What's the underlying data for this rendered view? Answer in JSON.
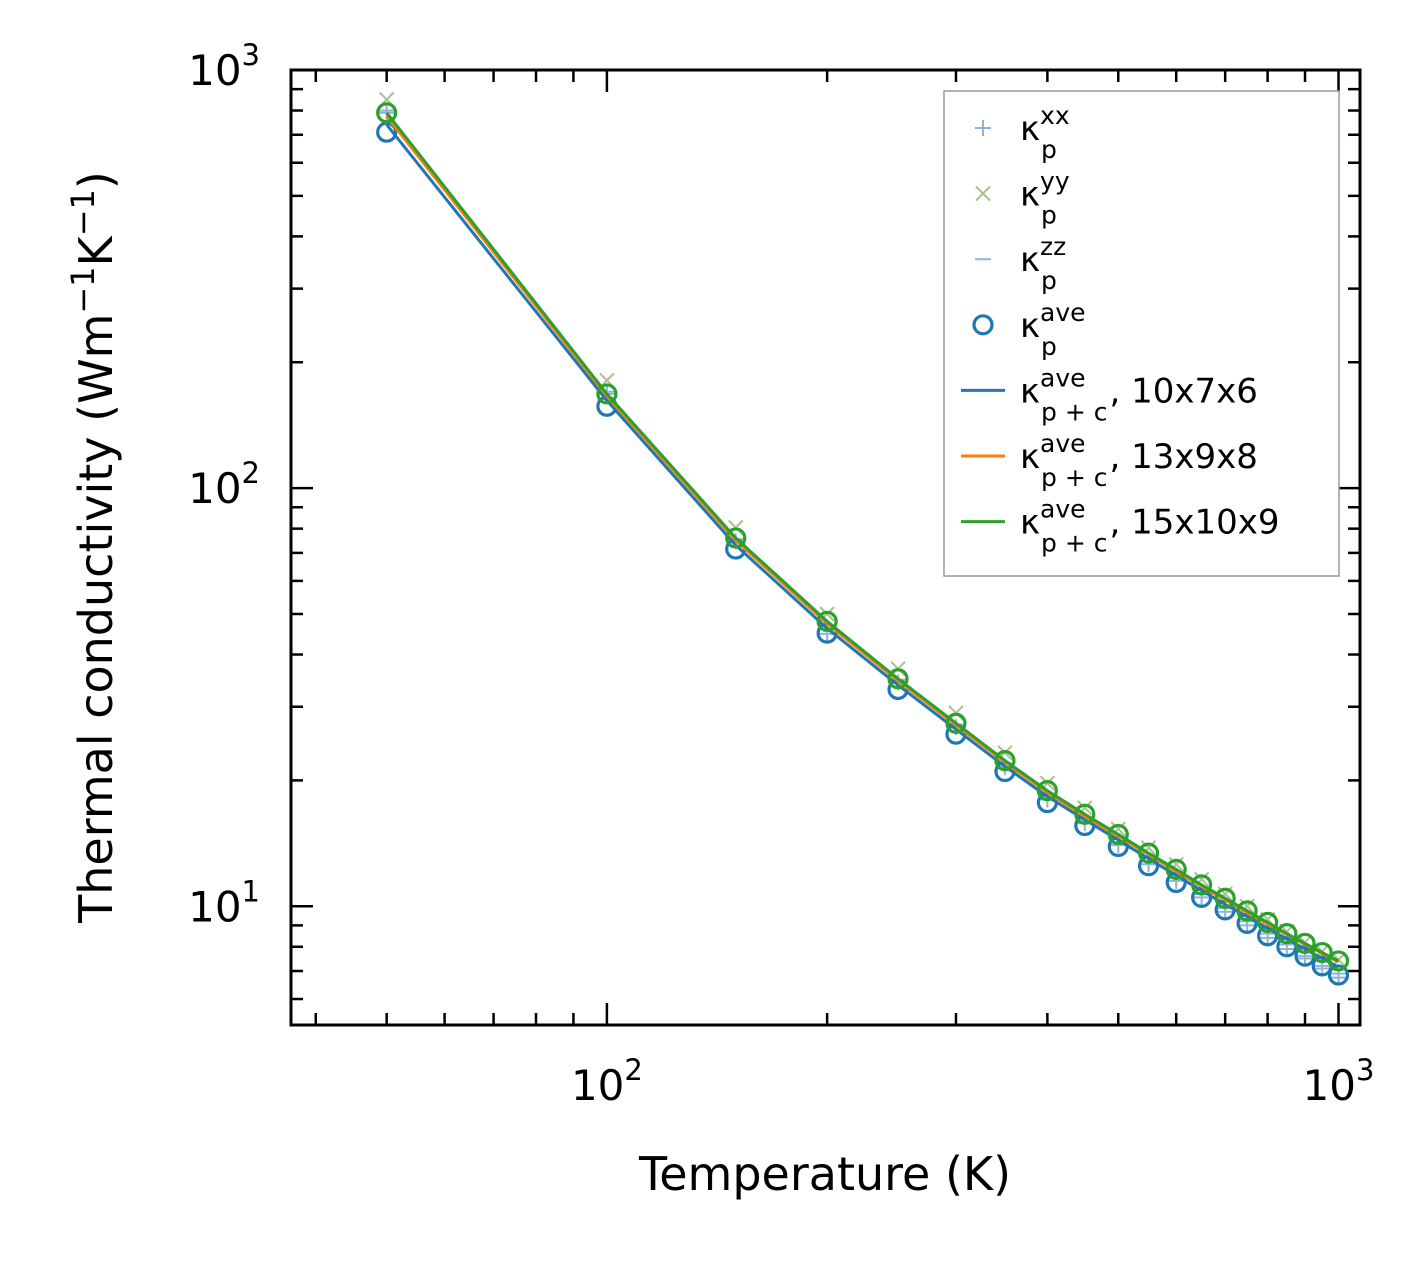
{
  "chart_data": {
    "type": "line",
    "xscale": "log",
    "yscale": "log",
    "xlabel": "Temperature (K)",
    "ylabel": "Thermal conductivity (Wm⁻¹K⁻¹)",
    "ylabel_parts": {
      "prefix": "Thermal conductivity (Wm",
      "sup1": "−1",
      "mid": "K",
      "sup2": "−1",
      "suffix": ")"
    },
    "xlim": [
      37,
      1070
    ],
    "ylim": [
      5.2,
      1000
    ],
    "x_ticks": [
      {
        "base": "10",
        "exp": "2",
        "value": 100
      },
      {
        "base": "10",
        "exp": "3",
        "value": 1000
      }
    ],
    "y_ticks": [
      {
        "base": "10",
        "exp": "1",
        "value": 10
      },
      {
        "base": "10",
        "exp": "2",
        "value": 100
      },
      {
        "base": "10",
        "exp": "3",
        "value": 1000
      }
    ],
    "legend_position": "top-right",
    "x": [
      50,
      100,
      150,
      200,
      250,
      300,
      350,
      400,
      450,
      500,
      550,
      600,
      650,
      700,
      750,
      800,
      850,
      900,
      950,
      1000
    ],
    "series": [
      {
        "name": "kp_xx",
        "kind": "marker-plus",
        "color": "#8fb4d8",
        "label_base": "κ",
        "label_sub": "p",
        "label_sup": "xx",
        "label_tail": "",
        "values": [
          790,
          168,
          74.5,
          44.8,
          34.3,
          26.8,
          21.5,
          18.0,
          15.8,
          14.0,
          12.6,
          11.5,
          10.5,
          9.7,
          9.0,
          8.4,
          7.9,
          7.5,
          7.1,
          6.75
        ]
      },
      {
        "name": "kp_yy",
        "kind": "marker-x",
        "color": "#a9c28e",
        "label_base": "κ",
        "label_sub": "p",
        "label_sup": "yy",
        "label_tail": "",
        "values": [
          850,
          181,
          80.5,
          50.0,
          37.0,
          29.0,
          23.3,
          19.7,
          17.2,
          15.3,
          13.8,
          12.6,
          11.6,
          10.7,
          10.0,
          9.3,
          8.7,
          8.2,
          7.8,
          7.45
        ]
      },
      {
        "name": "kp_zz",
        "kind": "marker-dash",
        "color": "#8fb4d8",
        "label_base": "κ",
        "label_sub": "p",
        "label_sup": "zz",
        "label_tail": "",
        "values": [
          800,
          170,
          75.5,
          46.0,
          34.8,
          27.2,
          21.9,
          18.3,
          16.0,
          14.2,
          12.8,
          11.7,
          10.7,
          9.9,
          9.2,
          8.6,
          8.1,
          7.6,
          7.2,
          6.9
        ]
      },
      {
        "name": "kp_ave",
        "kind": "marker-circle",
        "color": "#1f77b4",
        "label_base": "κ",
        "label_sub": "p",
        "label_sup": "ave",
        "label_tail": "",
        "values": [
          710,
          157,
          71.5,
          45.0,
          33.0,
          25.8,
          21.0,
          17.7,
          15.6,
          13.9,
          12.5,
          11.4,
          10.5,
          9.8,
          9.1,
          8.5,
          8.0,
          7.6,
          7.2,
          6.85
        ]
      },
      {
        "name": "kpc_ave_10x7x6",
        "kind": "line",
        "color": "#1f77b4",
        "label_base": "κ",
        "label_sub": "p + c",
        "label_sup": "ave",
        "label_tail": ", 10x7x6",
        "values": [
          740,
          162,
          73.0,
          46.2,
          33.8,
          26.5,
          21.6,
          18.3,
          16.1,
          14.4,
          13.0,
          11.85,
          10.9,
          10.1,
          9.45,
          8.85,
          8.35,
          7.9,
          7.5,
          7.15
        ]
      },
      {
        "name": "kpc_ave_13x9x8",
        "kind": "line",
        "color": "#ff7f0e",
        "label_base": "κ",
        "label_sub": "p + c",
        "label_sup": "ave",
        "label_tail": ", 13x9x8",
        "values": [
          775,
          166,
          75.0,
          47.4,
          34.6,
          27.1,
          22.1,
          18.7,
          16.4,
          14.7,
          13.3,
          12.1,
          11.15,
          10.35,
          9.65,
          9.05,
          8.55,
          8.1,
          7.7,
          7.35
        ]
      },
      {
        "name": "kpc_ave_15x10x9",
        "kind": "line",
        "color": "#2ca02c",
        "label_base": "κ",
        "label_sub": "p + c",
        "label_sup": "ave",
        "label_tail": ", 15x10x9",
        "values": [
          790,
          168,
          76.0,
          48.0,
          35.0,
          27.4,
          22.3,
          18.9,
          16.6,
          14.85,
          13.4,
          12.25,
          11.25,
          10.45,
          9.75,
          9.15,
          8.6,
          8.15,
          7.75,
          7.4
        ]
      },
      {
        "name": "kpc_ave_15x10x9_markers",
        "kind": "marker-circle-overlay",
        "color": "#2ca02c",
        "values": [
          790,
          168,
          76.0,
          48.0,
          35.0,
          27.4,
          22.3,
          18.9,
          16.6,
          14.85,
          13.4,
          12.25,
          11.25,
          10.45,
          9.75,
          9.15,
          8.6,
          8.15,
          7.75,
          7.4
        ]
      }
    ]
  }
}
